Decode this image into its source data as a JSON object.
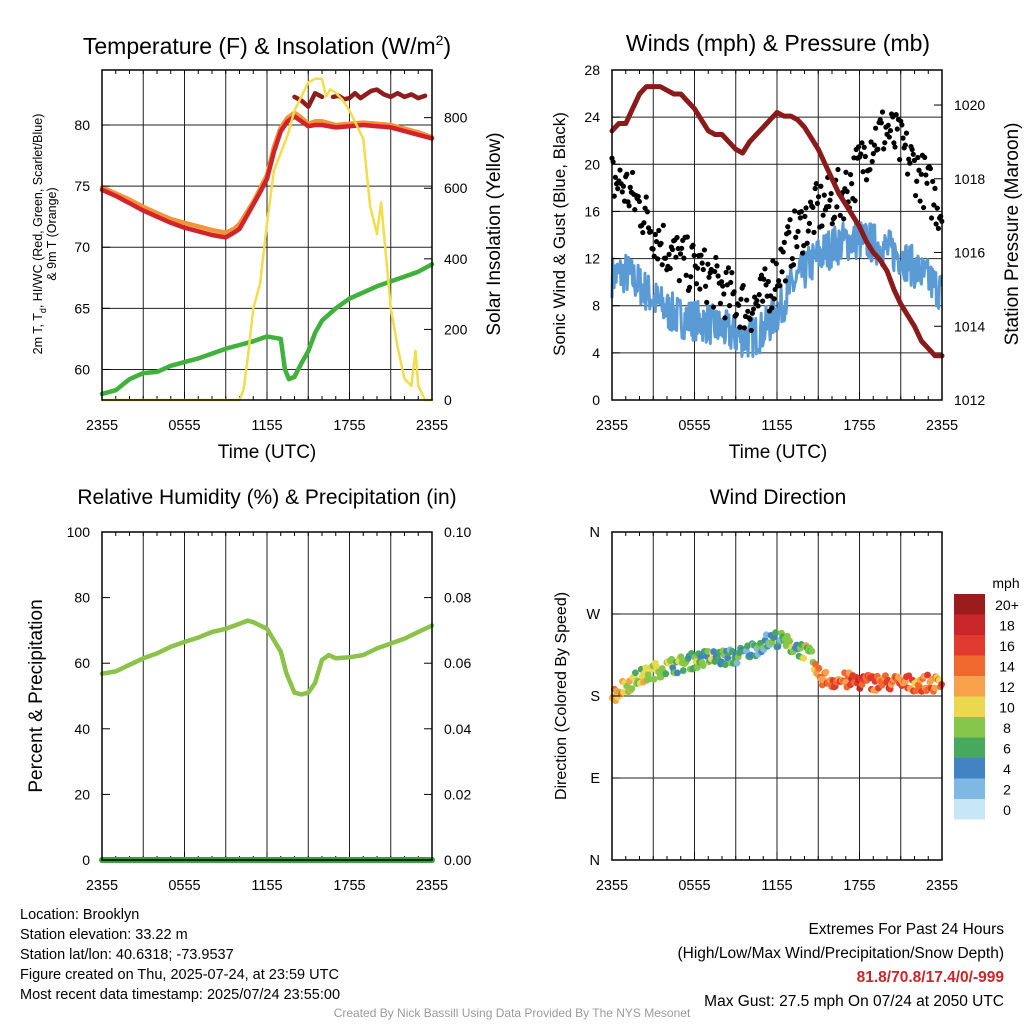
{
  "chart_data": [
    {
      "id": "temperature",
      "type": "line",
      "title": "Temperature (F) & Insolation (W/m",
      "title_sup": "2",
      "title_end": ")",
      "xlabel": "Time (UTC)",
      "ylabel_line1": "2m T, T",
      "ylabel_sub": "d",
      "ylabel_line1_end": ", HI/WC (Red, Green, Scarlet/Blue)",
      "ylabel_line2": "& 9m T (Orange)",
      "y2label": "Solar Insolation (Yellow)",
      "xticks": [
        "2355",
        "0555",
        "1155",
        "1755",
        "2355"
      ],
      "yticks": [
        "60",
        "65",
        "70",
        "75",
        "80"
      ],
      "y2ticks": [
        "0",
        "200",
        "400",
        "600",
        "800"
      ],
      "xlim": [
        0,
        24
      ],
      "ylim": [
        57.5,
        84.5
      ],
      "y2lim": [
        0,
        935
      ],
      "series": [
        {
          "color": "#f5933a",
          "width": 4.5,
          "axis": "y",
          "x": [
            0,
            1,
            2,
            3,
            4,
            5,
            6,
            7,
            8,
            9,
            9.6,
            10,
            10.5,
            11,
            11.5,
            12,
            12.5,
            13,
            13.5,
            14,
            14.5,
            15,
            15.5,
            16,
            17,
            18,
            19,
            20,
            21,
            22,
            23,
            24
          ],
          "y": [
            74.9,
            74.4,
            73.9,
            73.3,
            72.8,
            72.3,
            72.0,
            71.7,
            71.4,
            71.2,
            71.5,
            71.9,
            72.8,
            73.7,
            74.8,
            75.9,
            78.2,
            79.8,
            80.6,
            81.0,
            80.6,
            80.1,
            80.3,
            80.3,
            80.0,
            80.1,
            80.2,
            80.1,
            80.0,
            79.7,
            79.4,
            79.0
          ]
        },
        {
          "color": "#d0232a",
          "width": 4.5,
          "axis": "y",
          "x": [
            0,
            1,
            2,
            3,
            4,
            5,
            6,
            7,
            8,
            9,
            9.6,
            10,
            10.5,
            11,
            11.5,
            12,
            12.5,
            13,
            13.5,
            14,
            14.5,
            15,
            15.5,
            16,
            17,
            18,
            19,
            20,
            21,
            22,
            23,
            24
          ],
          "y": [
            74.7,
            74.2,
            73.6,
            73.0,
            72.5,
            72.0,
            71.6,
            71.3,
            71.0,
            70.8,
            71.2,
            71.5,
            72.5,
            73.5,
            74.5,
            75.6,
            77.8,
            79.5,
            80.3,
            80.7,
            80.3,
            79.9,
            80.0,
            80.0,
            79.8,
            79.9,
            80.0,
            79.9,
            79.8,
            79.5,
            79.2,
            78.9
          ]
        },
        {
          "color": "#8f1d1d",
          "width": 4.5,
          "axis": "y",
          "x": [
            14,
            14.5,
            15,
            15.5,
            16
          ],
          "y": [
            82.3,
            82.0,
            81.5,
            82.6,
            82.3
          ]
        },
        {
          "color": "#8f1d1d",
          "width": 4.5,
          "axis": "y",
          "x": [
            16.8,
            17.2,
            17.6,
            18,
            18.4,
            18.8,
            19.2,
            19.6,
            20,
            20.5,
            21,
            21.5,
            22,
            22.5,
            23,
            23.5
          ],
          "y": [
            82.3,
            82.4,
            82.1,
            82.2,
            82.6,
            82.2,
            82.5,
            82.8,
            82.9,
            82.5,
            82.3,
            82.6,
            82.3,
            82.5,
            82.2,
            82.4
          ]
        },
        {
          "color": "#3fb13c",
          "width": 4.5,
          "axis": "y",
          "x": [
            0,
            1,
            2,
            3,
            4,
            5,
            6,
            7,
            8,
            9,
            10,
            11,
            11.5,
            12,
            12.5,
            13,
            13.3,
            13.6,
            14,
            14.5,
            15,
            15.5,
            16,
            17,
            18,
            19,
            20,
            21,
            22,
            23,
            24
          ],
          "y": [
            58.0,
            58.3,
            59.2,
            59.7,
            59.8,
            60.3,
            60.6,
            60.9,
            61.3,
            61.7,
            62.0,
            62.3,
            62.5,
            62.7,
            62.6,
            62.5,
            60.0,
            59.2,
            59.4,
            60.5,
            61.5,
            63.0,
            64.0,
            65.0,
            65.8,
            66.3,
            66.8,
            67.2,
            67.6,
            68.0,
            68.6
          ]
        },
        {
          "color": "#f4dc4a",
          "width": 2.5,
          "axis": "y2",
          "x": [
            0,
            1,
            2,
            3,
            4,
            5,
            6,
            7,
            8,
            9,
            9.5,
            10,
            10.3,
            10.6,
            11,
            11.5,
            12,
            12.5,
            13,
            13.5,
            14,
            14.5,
            15,
            15.5,
            16,
            16.3,
            16.6,
            17,
            17.5,
            18,
            18.5,
            19,
            19.5,
            20,
            20.3,
            20.6,
            21,
            21.5,
            22,
            22.5,
            22.8,
            23,
            23.5,
            24
          ],
          "y": [
            0,
            0,
            0,
            0,
            0,
            0,
            0,
            0,
            0,
            0,
            0,
            0,
            30,
            120,
            260,
            330,
            500,
            650,
            700,
            750,
            820,
            860,
            900,
            910,
            910,
            860,
            880,
            870,
            850,
            820,
            780,
            740,
            550,
            470,
            560,
            430,
            260,
            150,
            60,
            40,
            140,
            40,
            0,
            0
          ]
        }
      ]
    },
    {
      "id": "winds",
      "type": "line",
      "title": "Winds (mph) & Pressure (mb)",
      "xlabel": "Time (UTC)",
      "ylabel": "Sonic Wind & Gust (Blue, Black)",
      "y2label": "Station Pressure (Maroon)",
      "xticks": [
        "2355",
        "0555",
        "1155",
        "1755",
        "2355"
      ],
      "yticks": [
        "0",
        "4",
        "8",
        "12",
        "16",
        "20",
        "24",
        "28"
      ],
      "y2ticks": [
        "1012",
        "1014",
        "1016",
        "1018",
        "1020"
      ],
      "xlim": [
        0,
        24
      ],
      "ylim": [
        0,
        28
      ],
      "y2lim": [
        1012,
        1020.95
      ],
      "series": [
        {
          "color": "#5b9bd5",
          "width": 3,
          "axis": "y",
          "noise": 1.1,
          "x": [
            0,
            1,
            2,
            3,
            4,
            5,
            6,
            7,
            8,
            9,
            10,
            11,
            12,
            13,
            14,
            15,
            16,
            17,
            18,
            19,
            20,
            21,
            22,
            23,
            24
          ],
          "y": [
            10.5,
            10.8,
            9.8,
            8.6,
            7.6,
            7.0,
            6.8,
            6.5,
            6.0,
            5.5,
            5.2,
            5.9,
            7.4,
            9.5,
            11.0,
            12.2,
            13.0,
            13.5,
            13.6,
            13.3,
            12.8,
            12.2,
            11.2,
            10.2,
            9.2
          ]
        },
        {
          "color": "#000000",
          "width": 0,
          "dots": true,
          "axis": "y",
          "noise": 1.3,
          "x": [
            0,
            1,
            2,
            3,
            4,
            5,
            6,
            7,
            8,
            9,
            10,
            11,
            12,
            13,
            14,
            15,
            16,
            17,
            18,
            19,
            20,
            21,
            22,
            23,
            24
          ],
          "y": [
            18.8,
            18.0,
            16.5,
            14.4,
            12.8,
            11.8,
            11.2,
            10.4,
            9.4,
            8.5,
            7.8,
            8.6,
            10.9,
            13.3,
            15.0,
            16.2,
            16.8,
            17.8,
            19.8,
            22.2,
            23.0,
            21.5,
            19.8,
            18.0,
            16.0
          ]
        },
        {
          "color": "#8b1a1a",
          "width": 5,
          "axis": "y2",
          "x": [
            0,
            0.5,
            1,
            1.5,
            2,
            2.5,
            3,
            3.5,
            4,
            4.5,
            5,
            5.5,
            6,
            6.5,
            7,
            7.5,
            8,
            8.5,
            9,
            9.5,
            10,
            10.5,
            11,
            11.5,
            12,
            12.5,
            13,
            13.5,
            14,
            14.5,
            15,
            15.5,
            16,
            16.5,
            17,
            17.5,
            18,
            18.5,
            19,
            19.5,
            20,
            20.5,
            21,
            21.5,
            22,
            22.5,
            23,
            23.5,
            24
          ],
          "y": [
            1019.3,
            1019.5,
            1019.5,
            1019.9,
            1020.3,
            1020.5,
            1020.5,
            1020.5,
            1020.4,
            1020.3,
            1020.3,
            1020.1,
            1019.9,
            1019.6,
            1019.3,
            1019.2,
            1019.2,
            1019.0,
            1018.8,
            1018.7,
            1019.0,
            1019.2,
            1019.4,
            1019.6,
            1019.8,
            1019.7,
            1019.7,
            1019.6,
            1019.4,
            1019.1,
            1018.8,
            1018.4,
            1018.0,
            1017.6,
            1017.3,
            1017.0,
            1016.7,
            1016.3,
            1016.0,
            1015.8,
            1015.5,
            1015.0,
            1014.6,
            1014.3,
            1014.0,
            1013.6,
            1013.4,
            1013.2,
            1013.2
          ]
        }
      ]
    },
    {
      "id": "humidity",
      "type": "line",
      "title": "Relative Humidity (%) & Precipitation (in)",
      "ylabel": "Percent & Precipitation",
      "xticks": [
        "2355",
        "0555",
        "1155",
        "1755",
        "2355"
      ],
      "yticks": [
        "0",
        "20",
        "40",
        "60",
        "80",
        "100"
      ],
      "y2ticks": [
        "0.00",
        "0.02",
        "0.04",
        "0.06",
        "0.08",
        "0.10"
      ],
      "xlim": [
        0,
        24
      ],
      "ylim": [
        0,
        100
      ],
      "y2lim": [
        0,
        0.1
      ],
      "series": [
        {
          "color": "#8bc34a",
          "width": 4.5,
          "axis": "y",
          "x": [
            0,
            1,
            2,
            3,
            4,
            5,
            6,
            7,
            8,
            9,
            10,
            10.6,
            11,
            11.5,
            12,
            12.5,
            13,
            13.4,
            14,
            14.5,
            15,
            15.5,
            16,
            16.5,
            17,
            18,
            19,
            20,
            21,
            22,
            23,
            24
          ],
          "y": [
            56.8,
            57.5,
            59.5,
            61.5,
            63.0,
            65.0,
            66.5,
            67.8,
            69.5,
            70.5,
            72.0,
            73.0,
            72.5,
            71.5,
            70.5,
            67.0,
            63.5,
            57.0,
            51.0,
            50.5,
            51.0,
            54.0,
            61.0,
            62.5,
            61.5,
            61.8,
            62.5,
            64.5,
            66.0,
            67.5,
            69.5,
            71.5
          ]
        },
        {
          "color": "#37a13c",
          "width": 6,
          "axis": "y2",
          "x": [
            0,
            24
          ],
          "y": [
            0,
            0
          ]
        }
      ]
    },
    {
      "id": "direction",
      "type": "scatter",
      "title": "Wind Direction",
      "ylabel": "Direction (Colored By Speed)",
      "xticks": [
        "2355",
        "0555",
        "1155",
        "1755",
        "2355"
      ],
      "yticks": [
        "N",
        "E",
        "S",
        "W",
        "N"
      ],
      "xlim": [
        0,
        24
      ],
      "ylim": [
        0,
        360
      ],
      "legend": {
        "title": "mph",
        "labels": [
          "20+",
          "18",
          "16",
          "14",
          "12",
          "10",
          "8",
          "6",
          "4",
          "2",
          "0"
        ],
        "colors": [
          "#9b1c1c",
          "#c8262b",
          "#e03b2e",
          "#f06a30",
          "#f7a14a",
          "#ead94f",
          "#86c64a",
          "#48a85e",
          "#4383c3",
          "#7fb9e3",
          "#c7e7f7"
        ]
      },
      "direction_trend": {
        "x": [
          0,
          1,
          2,
          3,
          4,
          5,
          6,
          7,
          8,
          9,
          10,
          11,
          12,
          13,
          14,
          14.5,
          15,
          16,
          17,
          18,
          19,
          20,
          21,
          22,
          23,
          24
        ],
        "y": [
          180,
          192,
          200,
          207,
          212,
          215,
          219,
          222,
          222,
          223,
          229,
          238,
          243,
          236,
          229,
          222,
          202,
          197,
          197,
          196,
          195,
          195,
          194,
          194,
          194,
          193
        ]
      },
      "speed_trend": {
        "x": [
          0,
          2,
          4,
          6,
          8,
          10,
          12,
          14,
          14.5,
          15,
          18,
          21,
          24
        ],
        "y": [
          12,
          9,
          8,
          7,
          6,
          4,
          5,
          8,
          9,
          13,
          15,
          14,
          13
        ]
      }
    }
  ],
  "info": {
    "location": "Location: Brooklyn",
    "elevation": "Station elevation: 33.22 m",
    "latlon": "Station lat/lon: 40.6318; -73.9537",
    "created": "Figure created on Thu, 2025-07-24, at 23:59 UTC",
    "recent": "Most recent data timestamp: 2025/07/24 23:55:00"
  },
  "extremes": {
    "title": "Extremes For Past 24 Hours",
    "subtitle": "(High/Low/Max Wind/Precipitation/Snow Depth)",
    "values": "81.8/70.8/17.4/0/-999",
    "gust": "Max Gust: 27.5 mph On 07/24 at 2050 UTC"
  },
  "credit": "Created By Nick Bassill Using Data Provided By The NYS Mesonet"
}
